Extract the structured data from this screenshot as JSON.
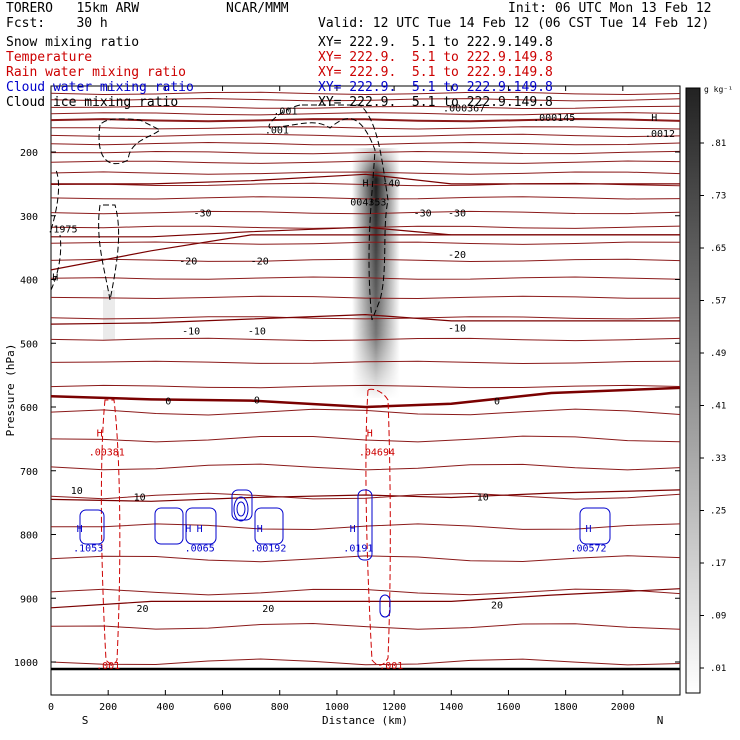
{
  "header": {
    "model": "TORERO   15km ARW",
    "center": "NCAR/MMM",
    "init": "Init: 06 UTC Mon 13 Feb 12",
    "fcst": "Fcst:    30 h",
    "valid": "Valid: 12 UTC Tue 14 Feb 12 (06 CST Tue 14 Feb 12)"
  },
  "fields": [
    {
      "name": "Snow mixing ratio",
      "xy": "XY= 222.9.  5.1 to 222.9.149.8",
      "color": "#000000"
    },
    {
      "name": "Temperature",
      "xy": "XY= 222.9.  5.1 to 222.9.149.8",
      "color": "#cc0000"
    },
    {
      "name": "Rain water mixing ratio",
      "xy": "XY= 222.9.  5.1 to 222.9.149.8",
      "color": "#cc0000"
    },
    {
      "name": "Cloud water mixing ratio",
      "xy": "XY= 222.9.  5.1 to 222.9.149.8",
      "color": "#0000cc"
    },
    {
      "name": "Cloud ice mixing ratio",
      "xy": "XY= 222.9.  5.1 to 222.9.149.8",
      "color": "#000000"
    }
  ],
  "chart_data": {
    "type": "cross-section",
    "xlabel": "Distance (km)",
    "ylabel": "Pressure (hPa)",
    "xlim": [
      0,
      2200
    ],
    "ylim": [
      1050,
      100
    ],
    "xticks": [
      0,
      200,
      400,
      600,
      800,
      1000,
      1200,
      1400,
      1600,
      1800,
      2000
    ],
    "yticks": [
      200,
      300,
      400,
      500,
      600,
      700,
      800,
      900,
      1000
    ],
    "x_endpoints": {
      "left": "S",
      "right": "N"
    },
    "colorbar": {
      "units": "g kg⁻¹",
      "ticks": [
        ".01",
        ".09",
        ".17",
        ".25",
        ".33",
        ".41",
        ".49",
        ".57",
        ".65",
        ".73",
        ".81"
      ]
    },
    "temperature_contours": [
      {
        "label": "-40",
        "p": [
          385,
          355,
          330,
          330,
          330,
          330,
          330
        ]
      },
      {
        "label": "-30",
        "p": [
          250,
          250,
          245,
          235,
          250,
          250,
          250
        ]
      },
      {
        "label": "-20",
        "p": [
          333,
          333,
          325,
          318,
          330,
          330,
          330
        ]
      },
      {
        "label": "-10",
        "p": [
          470,
          468,
          462,
          455,
          465,
          465,
          465
        ]
      },
      {
        "label": "0",
        "p": [
          583,
          588,
          590,
          600,
          595,
          578,
          570
        ]
      },
      {
        "label": "10",
        "p": [
          745,
          748,
          742,
          738,
          742,
          735,
          730
        ]
      },
      {
        "label": "20",
        "p": [
          915,
          905,
          905,
          905,
          905,
          895,
          885
        ]
      }
    ],
    "contour_labels": [
      {
        "text": "-30",
        "x": 530,
        "p": 295
      },
      {
        "text": "-30",
        "x": 1300,
        "p": 295
      },
      {
        "text": "-30",
        "x": 1420,
        "p": 295
      },
      {
        "text": "-20",
        "x": 480,
        "p": 370
      },
      {
        "text": "-20",
        "x": 730,
        "p": 370
      },
      {
        "text": "-20",
        "x": 1420,
        "p": 360
      },
      {
        "text": "-10",
        "x": 490,
        "p": 480
      },
      {
        "text": "-10",
        "x": 720,
        "p": 480
      },
      {
        "text": "-10",
        "x": 1420,
        "p": 475
      },
      {
        "text": "-40",
        "x": 1190,
        "p": 248
      },
      {
        "text": "0",
        "x": 410,
        "p": 590
      },
      {
        "text": "0",
        "x": 720,
        "p": 588
      },
      {
        "text": "0",
        "x": 1560,
        "p": 590
      },
      {
        "text": "10",
        "x": 90,
        "p": 730
      },
      {
        "text": "10",
        "x": 310,
        "p": 740
      },
      {
        "text": "10",
        "x": 1510,
        "p": 740
      },
      {
        "text": "20",
        "x": 320,
        "p": 915
      },
      {
        "text": "20",
        "x": 760,
        "p": 915
      },
      {
        "text": "20",
        "x": 1560,
        "p": 910
      }
    ],
    "maxima_labels": [
      {
        "text": "H",
        "x": 15,
        "p": 395,
        "color": "#000000"
      },
      {
        "text": ".001",
        "x": 820,
        "p": 135,
        "color": "#000000"
      },
      {
        "text": ".001",
        "x": 790,
        "p": 165,
        "color": "#000000"
      },
      {
        "text": ".000367",
        "x": 1445,
        "p": 130,
        "color": "#000000"
      },
      {
        "text": ".000145",
        "x": 1760,
        "p": 145,
        "color": "#000000"
      },
      {
        "text": "H",
        "x": 2110,
        "p": 145,
        "color": "#000000"
      },
      {
        "text": ".0012",
        "x": 2130,
        "p": 170,
        "color": "#000000"
      },
      {
        "text": "H",
        "x": 1100,
        "p": 248,
        "color": "#000000"
      },
      {
        "text": "004353",
        "x": 1110,
        "p": 278,
        "color": "#000000"
      },
      {
        "text": ".1975",
        "x": 40,
        "p": 320,
        "color": "#000000"
      },
      {
        "text": "H",
        "x": 170,
        "p": 640,
        "color": "#cc0000"
      },
      {
        "text": ".00381",
        "x": 195,
        "p": 670,
        "color": "#cc0000"
      },
      {
        "text": "H",
        "x": 1115,
        "p": 640,
        "color": "#cc0000"
      },
      {
        "text": ".04694",
        "x": 1140,
        "p": 670,
        "color": "#cc0000"
      },
      {
        "text": ".001",
        "x": 200,
        "p": 1005,
        "color": "#cc0000"
      },
      {
        "text": ".001",
        "x": 1190,
        "p": 1005,
        "color": "#cc0000"
      },
      {
        "text": "H",
        "x": 100,
        "p": 790,
        "color": "#0000cc"
      },
      {
        "text": ".1053",
        "x": 130,
        "p": 820,
        "color": "#0000cc"
      },
      {
        "text": "H",
        "x": 480,
        "p": 790,
        "color": "#0000cc"
      },
      {
        "text": "H",
        "x": 520,
        "p": 790,
        "color": "#0000cc"
      },
      {
        "text": ".0065",
        "x": 520,
        "p": 820,
        "color": "#0000cc"
      },
      {
        "text": "H",
        "x": 730,
        "p": 790,
        "color": "#0000cc"
      },
      {
        "text": ".00192",
        "x": 760,
        "p": 820,
        "color": "#0000cc"
      },
      {
        "text": "H",
        "x": 1055,
        "p": 790,
        "color": "#0000cc"
      },
      {
        "text": ".0191",
        "x": 1075,
        "p": 820,
        "color": "#0000cc"
      },
      {
        "text": "H",
        "x": 1880,
        "p": 790,
        "color": "#0000cc"
      },
      {
        "text": ".00572",
        "x": 1880,
        "p": 820,
        "color": "#0000cc"
      }
    ]
  }
}
